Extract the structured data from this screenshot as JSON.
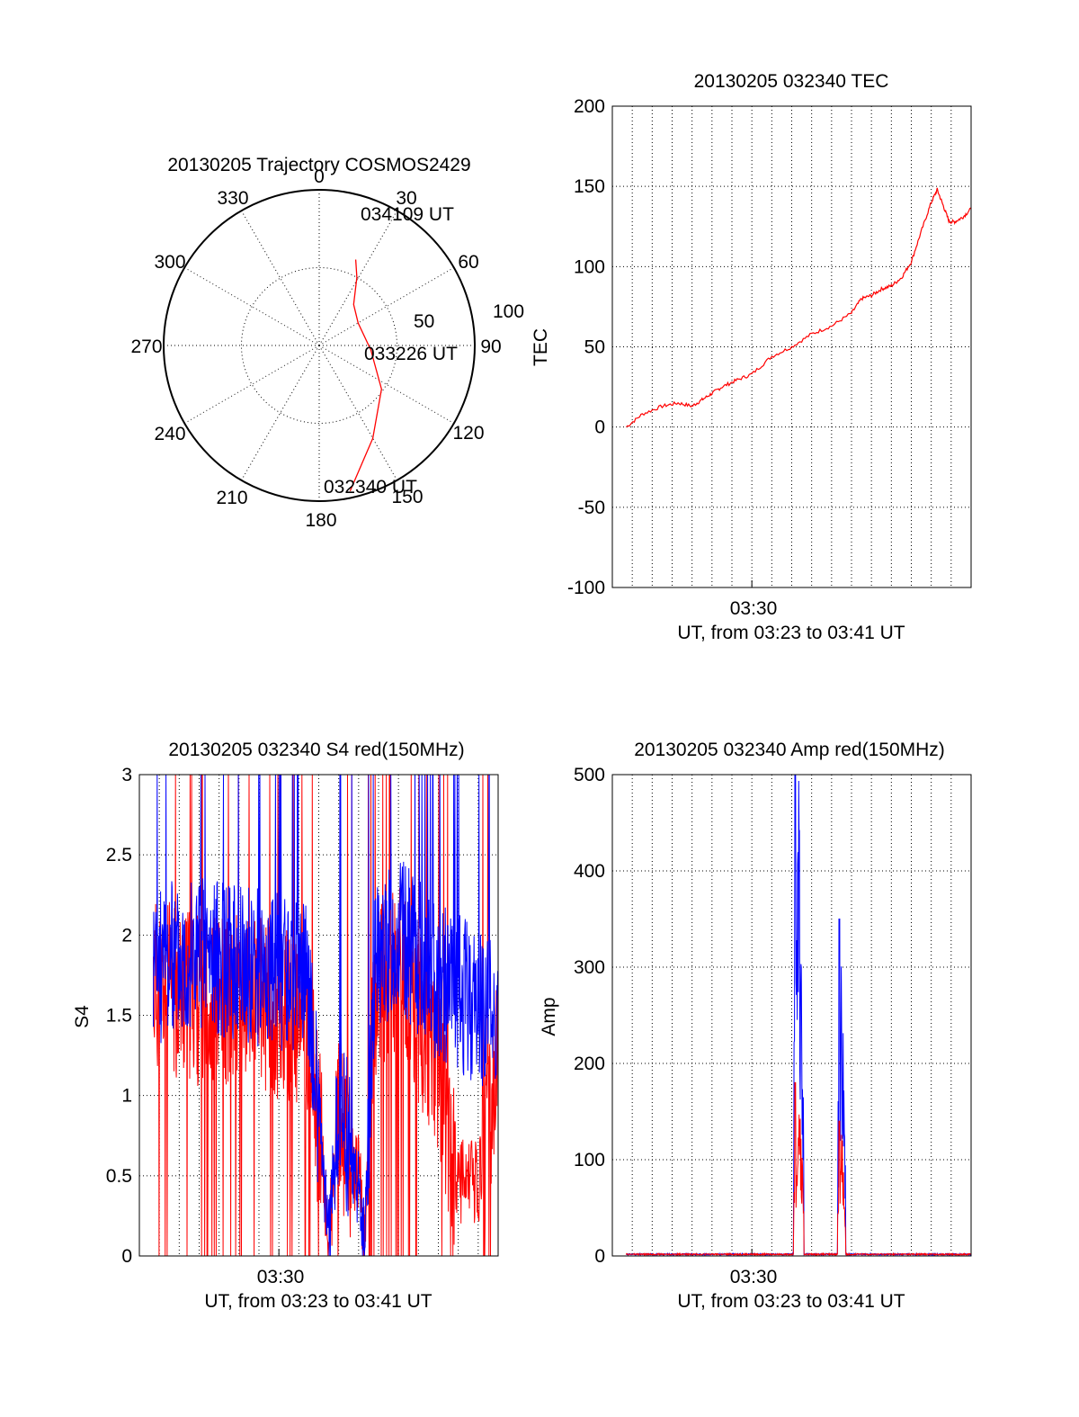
{
  "chart_data": [
    {
      "type": "polar",
      "title": "20130205 Trajectory COSMOS2429",
      "azimuth_labels": [
        "0",
        "30",
        "60",
        "90",
        "120",
        "150",
        "180",
        "210",
        "240",
        "270",
        "300",
        "330"
      ],
      "radial_labels": [
        "50",
        "100"
      ],
      "time_labels": {
        "end": "034109 UT",
        "mid": "033226 UT",
        "start": "032340 UT"
      },
      "track": [
        {
          "az": 168,
          "el": 4
        },
        {
          "az": 150,
          "el": 28
        },
        {
          "az": 125,
          "el": 46
        },
        {
          "az": 95,
          "el": 60
        },
        {
          "az": 60,
          "el": 64
        },
        {
          "az": 40,
          "el": 59
        },
        {
          "az": 29,
          "el": 45
        },
        {
          "az": 23,
          "el": 36
        }
      ],
      "colors": {
        "track": "#ff0000",
        "grid": "#000000"
      }
    },
    {
      "type": "line",
      "title": "20130205 032340 TEC",
      "ylabel": "TEC",
      "xlabel": "UT, from 03:23 to 03:41 UT",
      "xtick_label": "03:30",
      "x_range": [
        "03:23",
        "03:41"
      ],
      "ylim": [
        -100,
        200
      ],
      "yticks": [
        "-100",
        "-50",
        "0",
        "50",
        "100",
        "150",
        "200"
      ],
      "grid": true,
      "series": [
        {
          "color": "#ff0000",
          "x_minutes": [
            0.7,
            1.5,
            2.5,
            3.3,
            4.0,
            4.5,
            5.0,
            5.5,
            6.2,
            7.0,
            8.0,
            9.0,
            10.0,
            11.0,
            12.0,
            12.5,
            13.0,
            13.5,
            14.0,
            14.5,
            15.0,
            15.5,
            16.0,
            16.3,
            16.6,
            16.9,
            17.2,
            17.6,
            18.0
          ],
          "values": [
            0,
            8,
            13,
            15,
            13,
            17,
            21,
            25,
            29,
            33,
            44,
            50,
            58,
            63,
            71,
            80,
            82,
            86,
            88,
            93,
            103,
            122,
            140,
            148,
            138,
            128,
            128,
            131,
            136
          ]
        }
      ]
    },
    {
      "type": "line",
      "title": "20130205 032340 S4 red(150MHz)",
      "ylabel": "S4",
      "xlabel": "UT, from 03:23 to 03:41 UT",
      "xtick_label": "03:30",
      "x_range": [
        "03:23",
        "03:41"
      ],
      "ylim": [
        0,
        3
      ],
      "yticks": [
        "0",
        "0.5",
        "1",
        "1.5",
        "2",
        "2.5",
        "3"
      ],
      "grid": true,
      "series": [
        {
          "name": "blue",
          "color": "#0000ff",
          "level_profile": [
            [
              0.7,
              1.8
            ],
            [
              3.0,
              1.9
            ],
            [
              6.0,
              1.8
            ],
            [
              8.5,
              1.7
            ],
            [
              9.0,
              0.8
            ],
            [
              9.5,
              0.1
            ],
            [
              10.0,
              1.0
            ],
            [
              11.0,
              0.4
            ],
            [
              11.3,
              0.1
            ],
            [
              11.8,
              1.8
            ],
            [
              13.0,
              2.0
            ],
            [
              15.0,
              1.7
            ],
            [
              18.0,
              1.5
            ]
          ]
        },
        {
          "name": "red",
          "color": "#ff0000",
          "level_profile": [
            [
              0.7,
              1.7
            ],
            [
              3.0,
              1.6
            ],
            [
              6.0,
              1.6
            ],
            [
              8.5,
              1.4
            ],
            [
              9.0,
              0.8
            ],
            [
              9.5,
              0.1
            ],
            [
              10.0,
              0.8
            ],
            [
              11.0,
              0.5
            ],
            [
              11.3,
              0.1
            ],
            [
              11.8,
              1.6
            ],
            [
              13.0,
              1.8
            ],
            [
              15.0,
              1.2
            ],
            [
              16.0,
              0.45
            ],
            [
              17.0,
              0.45
            ],
            [
              18.0,
              1.2
            ]
          ]
        }
      ]
    },
    {
      "type": "line",
      "title": "20130205 032340 Amp red(150MHz)",
      "ylabel": "Amp",
      "xlabel": "UT, from 03:23 to 03:41 UT",
      "xtick_label": "03:30",
      "x_range": [
        "03:23",
        "03:41"
      ],
      "ylim": [
        0,
        500
      ],
      "yticks": [
        "0",
        "100",
        "200",
        "300",
        "400",
        "500"
      ],
      "grid": true,
      "series": [
        {
          "name": "blue",
          "color": "#0000ff",
          "spikes": [
            {
              "start": 9.1,
              "end": 9.6,
              "peak": 500
            },
            {
              "start": 11.3,
              "end": 11.7,
              "peak": 350
            }
          ]
        },
        {
          "name": "red",
          "color": "#ff0000",
          "spikes": [
            {
              "start": 9.1,
              "end": 9.6,
              "peak": 180
            },
            {
              "start": 11.3,
              "end": 11.7,
              "peak": 140
            }
          ]
        }
      ]
    }
  ]
}
